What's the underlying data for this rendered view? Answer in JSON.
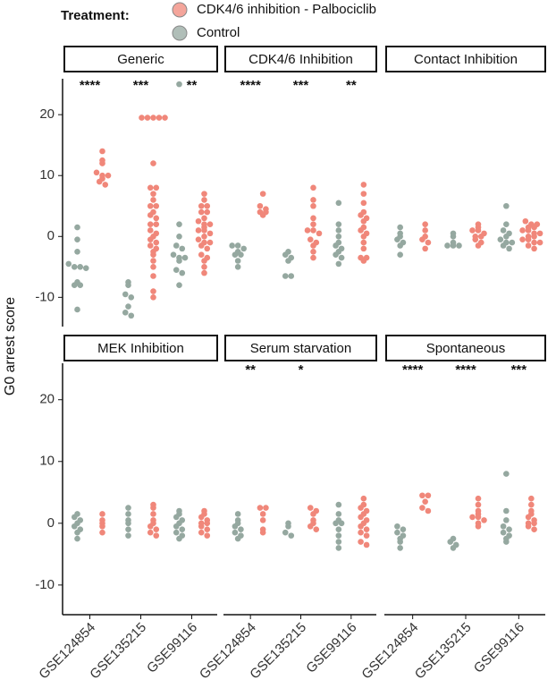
{
  "chart_data": {
    "type": "beeswarm",
    "legend_title": "Treatment:",
    "y_label": "G0 arrest score",
    "series": [
      {
        "name": "CDK4/6 inhibition - Palbociclib",
        "color": "#f0877a"
      },
      {
        "name": "Control",
        "color": "#95a8a0"
      }
    ],
    "categories": [
      "GSE124854",
      "GSE135215",
      "GSE99116"
    ],
    "ylim": [
      -14.8,
      25.9
    ],
    "yticks": [
      -10,
      0,
      10,
      20
    ],
    "facets": [
      {
        "title": "Generic",
        "significance": [
          "****",
          "***",
          "**"
        ],
        "values": [
          [
            [
              14,
              12.5,
              12,
              10.5,
              10,
              10,
              9.5,
              9,
              8.5
            ],
            [
              19.5,
              19.5,
              19.5,
              19.5,
              19.5,
              12,
              8,
              8,
              7,
              6,
              5,
              5,
              4,
              3.5,
              3,
              2,
              2,
              1,
              0.5,
              0,
              -0.5,
              -1,
              -1.5,
              -2,
              -2.5,
              -3,
              -4,
              -5,
              -6.5,
              -9,
              -10
            ],
            [
              7,
              6,
              5,
              5,
              4,
              4,
              3,
              2.5,
              2,
              2,
              1.5,
              1,
              1,
              0.5,
              0,
              -0.5,
              -1,
              -1,
              -1.5,
              -2,
              -3,
              -3.5,
              -4,
              -5,
              -6
            ]
          ],
          [
            [
              1.5,
              -0.5,
              -2.5,
              -4.5,
              -5,
              -5,
              -5.2,
              -7.5,
              -8,
              -8,
              -12
            ],
            [
              -7.5,
              -8,
              -9.5,
              -10,
              -11.5,
              -12.5,
              -13
            ],
            [
              25,
              2,
              0,
              -1.5,
              -2,
              -3,
              -3.5,
              -3.5,
              -4,
              -5.5,
              -6,
              -8
            ]
          ]
        ]
      },
      {
        "title": "CDK4/6 Inhibition",
        "significance": [
          "****",
          "***",
          "**"
        ],
        "values": [
          [
            [
              7,
              5,
              4.5,
              4,
              4,
              3.5
            ],
            [
              8,
              6,
              5,
              3,
              2,
              1,
              1,
              0.5,
              -0.5,
              -1,
              -1.5,
              -2.5,
              -3.5
            ],
            [
              8.5,
              7,
              5.5,
              4,
              3.5,
              3,
              2.5,
              1.5,
              1,
              0.5,
              0,
              -1,
              -2,
              -3.5,
              -3.5,
              -4
            ]
          ],
          [
            [
              -1.5,
              -1.5,
              -2,
              -2.5,
              -3,
              -3,
              -4,
              -5
            ],
            [
              -2.5,
              -3,
              -3.5,
              -4,
              -6.5,
              -6.5
            ],
            [
              5.5,
              2,
              1,
              0,
              -1,
              -1.5,
              -2,
              -2.5,
              -3,
              -3.5,
              -4.5
            ]
          ]
        ]
      },
      {
        "title": "Contact Inhibition",
        "significance": [
          null,
          null,
          null
        ],
        "values": [
          [
            [
              2,
              1,
              0,
              -0.5,
              -1,
              -2
            ],
            [
              2,
              1.5,
              1,
              1,
              0.5,
              0,
              0,
              -0.5,
              -1,
              -1.5
            ],
            [
              2.5,
              2,
              2,
              1.5,
              1.5,
              1,
              1,
              0.5,
              0.5,
              0,
              0,
              -0.5,
              -0.5,
              -1,
              -1,
              -1.5,
              -2
            ]
          ],
          [
            [
              1.5,
              0.5,
              0,
              -0.5,
              -1,
              -1.5,
              -3
            ],
            [
              0.5,
              0,
              -1,
              -1.5,
              -1.5,
              -1.5
            ],
            [
              5,
              2,
              1,
              0.5,
              0,
              -0.5,
              -1,
              -1,
              -1.5,
              -2
            ]
          ]
        ]
      },
      {
        "title": "MEK Inhibition",
        "significance": [
          null,
          null,
          null
        ],
        "values": [
          [
            [
              1.5,
              0.5,
              0,
              -0.5,
              -1.5
            ],
            [
              3,
              2.5,
              1.5,
              0.5,
              0,
              -0.5,
              -1,
              -1.5,
              -2
            ],
            [
              2,
              1.5,
              1,
              0.5,
              0,
              0,
              -0.5,
              -1,
              -1.5,
              -2
            ]
          ],
          [
            [
              1.5,
              1,
              0.5,
              0,
              -0.5,
              -1,
              -1.5,
              -2.5
            ],
            [
              2.5,
              1.5,
              0.5,
              0,
              -1,
              -2
            ],
            [
              2,
              1.5,
              1,
              0.5,
              0,
              -0.5,
              -1,
              -1.5,
              -2,
              -2.5
            ]
          ]
        ]
      },
      {
        "title": "Serum starvation",
        "significance": [
          "**",
          "*",
          null
        ],
        "values": [
          [
            [
              2.5,
              2.5,
              1.5,
              0.5,
              -1,
              -1.5
            ],
            [
              2.5,
              2,
              1.5,
              0.5,
              0,
              -0.5,
              -1
            ],
            [
              4,
              3,
              2.5,
              2,
              1.5,
              1,
              0.5,
              0,
              -0.5,
              -1,
              -1.5,
              -2,
              -3,
              -3.5
            ]
          ],
          [
            [
              1.5,
              0.5,
              0,
              -0.5,
              -1,
              -1.5,
              -2,
              -2.5
            ],
            [
              0,
              -0.5,
              -1.5,
              -2
            ],
            [
              3,
              1.5,
              0.5,
              0,
              0,
              -1,
              -2,
              -3,
              -4
            ]
          ]
        ]
      },
      {
        "title": "Spontaneous",
        "significance": [
          "****",
          "****",
          "***"
        ],
        "values": [
          [
            [
              4.5,
              4.5,
              3.5,
              2.5,
              2
            ],
            [
              4,
              3,
              2,
              1.5,
              1,
              1,
              0.5,
              0,
              -0.5
            ],
            [
              4,
              3,
              2,
              1.5,
              1,
              0.5,
              0,
              0,
              -0.5,
              -1
            ]
          ],
          [
            [
              -0.5,
              -1,
              -1.5,
              -2,
              -2.5,
              -3,
              -4
            ],
            [
              -2.5,
              -3,
              -3.5,
              -4
            ],
            [
              8,
              2,
              0.5,
              -0.5,
              -1,
              -1.5,
              -2,
              -2.5,
              -3
            ]
          ]
        ]
      }
    ]
  }
}
